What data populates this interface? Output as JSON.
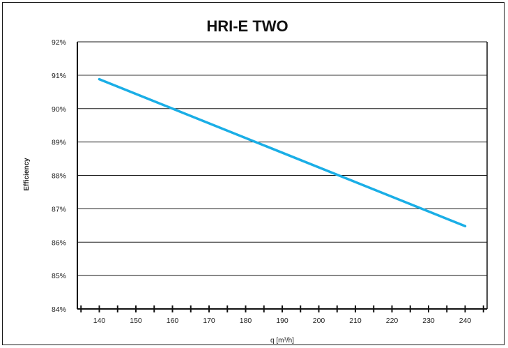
{
  "chart_data": {
    "type": "line",
    "title": "HRI-E TWO",
    "xlabel": "q [m³/h]",
    "ylabel": "Efficiency",
    "xlim": [
      134,
      246
    ],
    "ylim": [
      84,
      92
    ],
    "x_ticks": [
      140,
      150,
      160,
      170,
      180,
      190,
      200,
      210,
      220,
      230,
      240
    ],
    "x_tick_labels": [
      "140",
      "150",
      "160",
      "170",
      "180",
      "190",
      "200",
      "210",
      "220",
      "230",
      "240"
    ],
    "y_ticks": [
      84,
      85,
      86,
      87,
      88,
      89,
      90,
      91,
      92
    ],
    "y_tick_labels": [
      "84%",
      "85%",
      "86%",
      "87%",
      "88%",
      "89%",
      "90%",
      "91%",
      "92%"
    ],
    "grid": "horizontal",
    "series": [
      {
        "color": "#1aaee6",
        "x": [
          140,
          240
        ],
        "y": [
          90.88,
          86.48
        ]
      }
    ]
  }
}
